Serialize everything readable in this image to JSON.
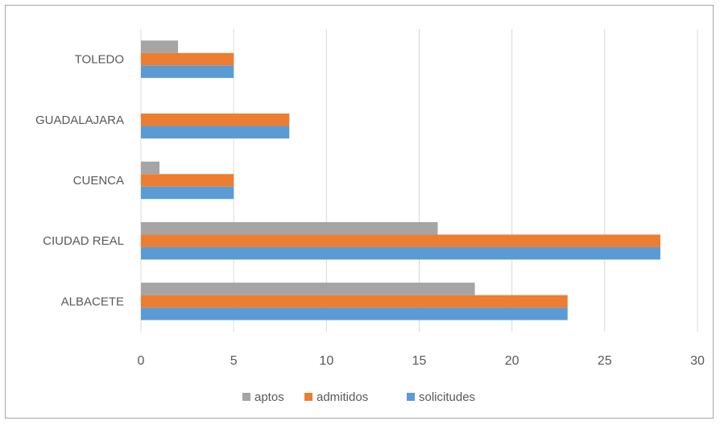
{
  "chart_data": {
    "type": "bar",
    "orientation": "horizontal",
    "categories": [
      "ALBACETE",
      "CIUDAD REAL",
      "CUENCA",
      "GUADALAJARA",
      "TOLEDO"
    ],
    "series": [
      {
        "name": "solicitudes",
        "color": "#5b9bd5",
        "values": [
          23,
          28,
          5,
          8,
          5
        ]
      },
      {
        "name": "admitidos",
        "color": "#ed7d31",
        "values": [
          23,
          28,
          5,
          8,
          5
        ]
      },
      {
        "name": "aptos",
        "color": "#a5a5a5",
        "values": [
          18,
          16,
          1,
          0,
          2
        ]
      }
    ],
    "xlim": [
      0,
      30
    ],
    "xticks": [
      0,
      5,
      10,
      15,
      20,
      25,
      30
    ],
    "grid": "vertical",
    "legend_position": "bottom",
    "legend_order": [
      "aptos",
      "admitidos",
      "solicitudes"
    ],
    "title": "",
    "xlabel": "",
    "ylabel": ""
  }
}
